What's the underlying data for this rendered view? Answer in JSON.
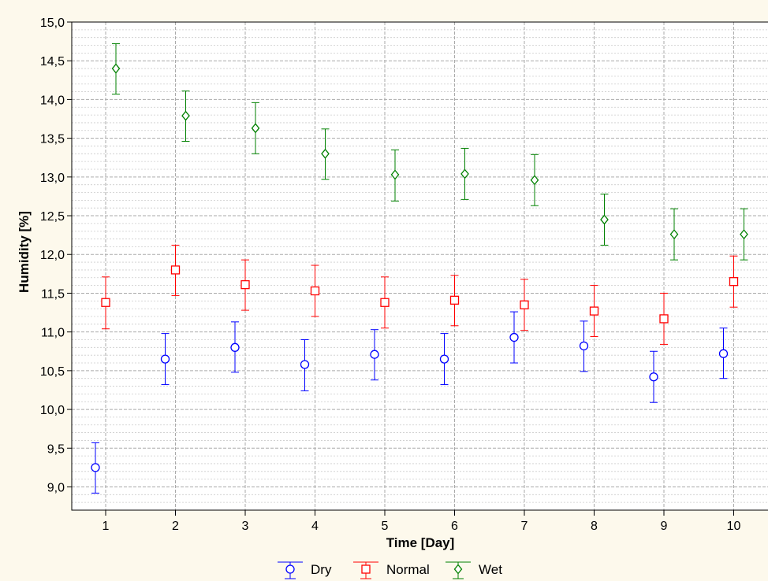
{
  "chart_data": {
    "type": "scatter",
    "title": "",
    "xlabel": "Time [Day]",
    "ylabel": "Humidity [%]",
    "categories": [
      "1",
      "2",
      "3",
      "4",
      "5",
      "6",
      "7",
      "8",
      "9",
      "10"
    ],
    "ylim": [
      8.7,
      15.0
    ],
    "yticks": [
      "9,0",
      "9,5",
      "10,0",
      "10,5",
      "11,0",
      "11,5",
      "12,0",
      "12,5",
      "13,0",
      "13,5",
      "14,0",
      "14,5",
      "15,0"
    ],
    "grid": true,
    "error_bars": true,
    "legend_position": "bottom",
    "series": [
      {
        "name": "Dry",
        "color": "#0000ff",
        "marker": "circle",
        "values": [
          9.25,
          10.65,
          10.8,
          10.58,
          10.71,
          10.65,
          10.93,
          10.82,
          10.42,
          10.72
        ],
        "lower": [
          8.92,
          10.32,
          10.48,
          10.24,
          10.38,
          10.32,
          10.6,
          10.49,
          10.09,
          10.4
        ],
        "upper": [
          9.57,
          10.98,
          11.13,
          10.9,
          11.03,
          10.98,
          11.26,
          11.14,
          10.75,
          11.05
        ]
      },
      {
        "name": "Normal",
        "color": "#ff0000",
        "marker": "square",
        "values": [
          11.38,
          11.8,
          11.61,
          11.53,
          11.38,
          11.41,
          11.35,
          11.27,
          11.17,
          11.65
        ],
        "lower": [
          11.04,
          11.47,
          11.28,
          11.2,
          11.05,
          11.08,
          11.02,
          10.94,
          10.84,
          11.32
        ],
        "upper": [
          11.71,
          12.12,
          11.93,
          11.86,
          11.71,
          11.73,
          11.68,
          11.6,
          11.5,
          11.98
        ]
      },
      {
        "name": "Wet",
        "color": "#008000",
        "marker": "diamond",
        "values": [
          14.4,
          13.79,
          13.63,
          13.3,
          13.03,
          13.04,
          12.96,
          12.45,
          12.26,
          12.26
        ],
        "lower": [
          14.07,
          13.46,
          13.3,
          12.97,
          12.69,
          12.71,
          12.63,
          12.12,
          11.93,
          11.93
        ],
        "upper": [
          14.72,
          14.11,
          13.96,
          13.62,
          13.35,
          13.37,
          13.29,
          12.78,
          12.59,
          12.59
        ]
      }
    ]
  }
}
